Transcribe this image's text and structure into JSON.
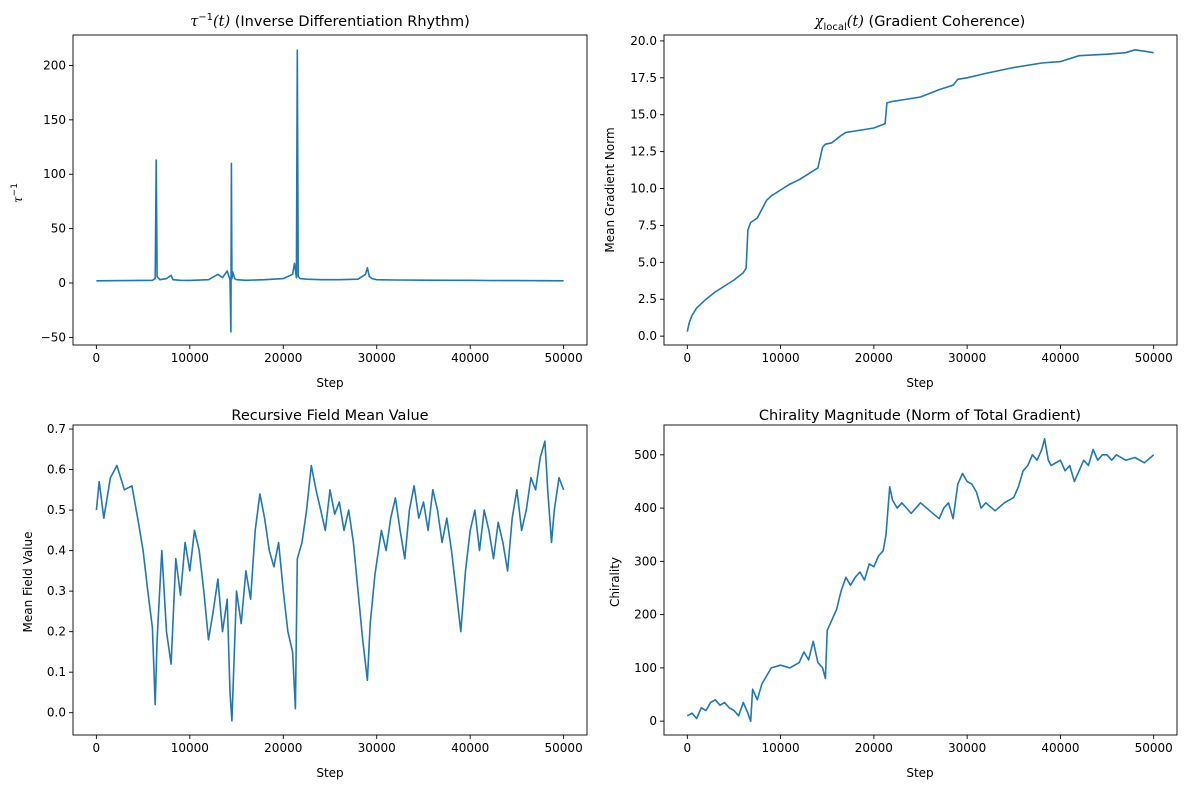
{
  "chart_data": [
    {
      "type": "line",
      "title": "(Inverse Differentiation Rhythm)",
      "title_math": {
        "symbol": "τ",
        "sup": "−1",
        "arg": "(t)"
      },
      "xlabel": "Step",
      "ylabel_math": {
        "symbol": "τ",
        "sup": "−1"
      },
      "xlim": [
        -2500,
        52500
      ],
      "ylim": [
        -57,
        228
      ],
      "xticks": [
        0,
        10000,
        20000,
        30000,
        40000,
        50000
      ],
      "xtick_labels": [
        "0",
        "10000",
        "20000",
        "30000",
        "40000",
        "50000"
      ],
      "yticks": [
        -50,
        0,
        50,
        100,
        150,
        200
      ],
      "ytick_labels": [
        "−50",
        "0",
        "50",
        "100",
        "150",
        "200"
      ],
      "color": "#1f77b4",
      "grid": false,
      "series": [
        {
          "x": [
            0,
            3000,
            6000,
            6300,
            6400,
            6500,
            6800,
            7500,
            8000,
            8200,
            9000,
            10000,
            12000,
            13000,
            13500,
            14000,
            14300,
            14400,
            14450,
            14500,
            14600,
            14800,
            15000,
            16000,
            18000,
            20000,
            21000,
            21200,
            21400,
            21500,
            21600,
            21800,
            22500,
            24000,
            26000,
            28000,
            28800,
            29000,
            29200,
            29500,
            30000,
            32000,
            35000,
            38000,
            40000,
            42000,
            45000,
            48000,
            50000
          ],
          "y": [
            2,
            2.2,
            2.5,
            4,
            113,
            6,
            3,
            4,
            7,
            3,
            2.5,
            2.4,
            3,
            8,
            5,
            11,
            3,
            -45,
            110,
            4,
            10,
            4,
            3,
            2.5,
            3,
            4,
            8,
            18,
            5,
            214,
            6,
            4,
            3.5,
            3,
            3,
            3.5,
            8,
            14,
            6,
            4,
            3,
            2.8,
            2.6,
            2.5,
            2.5,
            2.3,
            2.2,
            2.1,
            2.0
          ]
        }
      ]
    },
    {
      "type": "line",
      "title": "(Gradient Coherence)",
      "title_math": {
        "symbol": "χ",
        "sub": "local",
        "arg": "(t)"
      },
      "xlabel": "Step",
      "ylabel": "Mean Gradient Norm",
      "xlim": [
        -2500,
        52500
      ],
      "ylim": [
        -0.6,
        20.4
      ],
      "xticks": [
        0,
        10000,
        20000,
        30000,
        40000,
        50000
      ],
      "xtick_labels": [
        "0",
        "10000",
        "20000",
        "30000",
        "40000",
        "50000"
      ],
      "yticks": [
        0,
        2.5,
        5,
        7.5,
        10,
        12.5,
        15,
        17.5,
        20
      ],
      "ytick_labels": [
        "0.0",
        "2.5",
        "5.0",
        "7.5",
        "10.0",
        "12.5",
        "15.0",
        "17.5",
        "20.0"
      ],
      "color": "#1f77b4",
      "grid": false,
      "series": [
        {
          "x": [
            0,
            200,
            500,
            1000,
            2000,
            3000,
            4000,
            5000,
            6000,
            6300,
            6500,
            6800,
            7500,
            8500,
            9000,
            10000,
            11000,
            12000,
            13000,
            14000,
            14500,
            14800,
            15500,
            16500,
            17000,
            18000,
            20000,
            21200,
            21400,
            22000,
            23000,
            25000,
            27000,
            28500,
            29000,
            30000,
            32000,
            35000,
            38000,
            40000,
            42000,
            45000,
            47000,
            48000,
            49000,
            50000
          ],
          "y": [
            0.3,
            0.9,
            1.4,
            1.9,
            2.5,
            3.0,
            3.4,
            3.8,
            4.3,
            4.6,
            7.2,
            7.7,
            8.0,
            9.2,
            9.5,
            9.9,
            10.3,
            10.6,
            11.0,
            11.4,
            12.8,
            13.0,
            13.1,
            13.6,
            13.8,
            13.9,
            14.1,
            14.4,
            15.8,
            15.9,
            16.0,
            16.2,
            16.7,
            17.0,
            17.4,
            17.5,
            17.8,
            18.2,
            18.5,
            18.6,
            19.0,
            19.1,
            19.2,
            19.4,
            19.3,
            19.2
          ]
        }
      ]
    },
    {
      "type": "line",
      "title": "Recursive Field Mean Value",
      "xlabel": "Step",
      "ylabel": "Mean Field Value",
      "xlim": [
        -2500,
        52500
      ],
      "ylim": [
        -0.055,
        0.71
      ],
      "xticks": [
        0,
        10000,
        20000,
        30000,
        40000,
        50000
      ],
      "xtick_labels": [
        "0",
        "10000",
        "20000",
        "30000",
        "40000",
        "50000"
      ],
      "yticks": [
        0,
        0.1,
        0.2,
        0.3,
        0.4,
        0.5,
        0.6,
        0.7
      ],
      "ytick_labels": [
        "0.0",
        "0.1",
        "0.2",
        "0.3",
        "0.4",
        "0.5",
        "0.6",
        "0.7"
      ],
      "color": "#1f77b4",
      "grid": false,
      "series": [
        {
          "x": [
            0,
            300,
            800,
            1500,
            2200,
            3000,
            3800,
            4500,
            5000,
            5500,
            6000,
            6300,
            6500,
            7000,
            7500,
            8000,
            8500,
            9000,
            9500,
            10000,
            10500,
            11000,
            11500,
            12000,
            12500,
            13000,
            13500,
            14000,
            14300,
            14500,
            15000,
            15500,
            16000,
            16500,
            17000,
            17500,
            18000,
            18500,
            19000,
            19500,
            20000,
            20500,
            21000,
            21300,
            21500,
            22000,
            22500,
            23000,
            23500,
            24000,
            24500,
            25000,
            25500,
            26000,
            26500,
            27000,
            27500,
            28000,
            28500,
            29000,
            29300,
            29800,
            30500,
            31000,
            31500,
            32000,
            32500,
            33000,
            33500,
            34000,
            34500,
            35000,
            35500,
            36000,
            36500,
            37000,
            37500,
            38000,
            38500,
            39000,
            39500,
            40000,
            40500,
            41000,
            41500,
            42000,
            42500,
            43000,
            43500,
            44000,
            44500,
            45000,
            45500,
            46000,
            46500,
            47000,
            47500,
            48000,
            48300,
            48700,
            49000,
            49500,
            50000
          ],
          "y": [
            0.5,
            0.57,
            0.48,
            0.58,
            0.61,
            0.55,
            0.56,
            0.47,
            0.4,
            0.3,
            0.21,
            0.02,
            0.18,
            0.4,
            0.2,
            0.12,
            0.38,
            0.29,
            0.42,
            0.35,
            0.45,
            0.4,
            0.3,
            0.18,
            0.25,
            0.33,
            0.2,
            0.28,
            0.05,
            -0.02,
            0.3,
            0.22,
            0.35,
            0.28,
            0.45,
            0.54,
            0.48,
            0.4,
            0.36,
            0.42,
            0.3,
            0.2,
            0.15,
            0.01,
            0.38,
            0.42,
            0.5,
            0.61,
            0.55,
            0.5,
            0.45,
            0.55,
            0.49,
            0.52,
            0.45,
            0.5,
            0.42,
            0.3,
            0.18,
            0.08,
            0.22,
            0.34,
            0.45,
            0.4,
            0.48,
            0.53,
            0.45,
            0.38,
            0.5,
            0.56,
            0.48,
            0.52,
            0.45,
            0.55,
            0.5,
            0.42,
            0.48,
            0.4,
            0.3,
            0.2,
            0.35,
            0.45,
            0.5,
            0.4,
            0.5,
            0.45,
            0.38,
            0.47,
            0.42,
            0.35,
            0.48,
            0.55,
            0.45,
            0.5,
            0.58,
            0.55,
            0.63,
            0.67,
            0.55,
            0.42,
            0.5,
            0.58,
            0.55
          ]
        }
      ]
    },
    {
      "type": "line",
      "title": "Chirality Magnitude (Norm of Total Gradient)",
      "xlabel": "Step",
      "ylabel": "Chirality",
      "xlim": [
        -2500,
        52500
      ],
      "ylim": [
        -26,
        556
      ],
      "xticks": [
        0,
        10000,
        20000,
        30000,
        40000,
        50000
      ],
      "xtick_labels": [
        "0",
        "10000",
        "20000",
        "30000",
        "40000",
        "50000"
      ],
      "yticks": [
        0,
        100,
        200,
        300,
        400,
        500
      ],
      "ytick_labels": [
        "0",
        "100",
        "200",
        "300",
        "400",
        "500"
      ],
      "color": "#1f77b4",
      "grid": false,
      "series": [
        {
          "x": [
            0,
            500,
            1000,
            1500,
            2000,
            2500,
            3000,
            3500,
            4000,
            4500,
            5000,
            5500,
            6000,
            6500,
            6800,
            7000,
            7500,
            8000,
            8500,
            9000,
            10000,
            11000,
            12000,
            12500,
            13000,
            13500,
            14000,
            14500,
            14800,
            15000,
            15500,
            16000,
            16500,
            17000,
            17500,
            18000,
            18500,
            19000,
            19500,
            20000,
            20500,
            21000,
            21300,
            21700,
            22000,
            22500,
            23000,
            24000,
            25000,
            26000,
            27000,
            27500,
            28000,
            28500,
            29000,
            29500,
            30000,
            30500,
            31000,
            31500,
            32000,
            33000,
            34000,
            35000,
            35500,
            36000,
            36500,
            37000,
            37500,
            38000,
            38300,
            38700,
            39000,
            40000,
            40500,
            41000,
            41500,
            42000,
            42500,
            43000,
            43500,
            44000,
            44500,
            45000,
            45500,
            46000,
            47000,
            48000,
            49000,
            50000
          ],
          "y": [
            10,
            15,
            5,
            25,
            20,
            35,
            40,
            30,
            35,
            25,
            20,
            10,
            35,
            15,
            0,
            60,
            40,
            70,
            85,
            100,
            105,
            100,
            110,
            130,
            115,
            150,
            110,
            100,
            80,
            170,
            190,
            210,
            245,
            270,
            255,
            270,
            280,
            265,
            295,
            290,
            310,
            320,
            350,
            440,
            415,
            400,
            410,
            390,
            410,
            395,
            380,
            400,
            410,
            380,
            445,
            465,
            450,
            445,
            430,
            400,
            410,
            395,
            410,
            420,
            440,
            470,
            480,
            500,
            490,
            510,
            530,
            490,
            480,
            490,
            470,
            480,
            450,
            470,
            490,
            480,
            510,
            490,
            500,
            500,
            490,
            500,
            490,
            495,
            485,
            500
          ]
        }
      ]
    }
  ]
}
